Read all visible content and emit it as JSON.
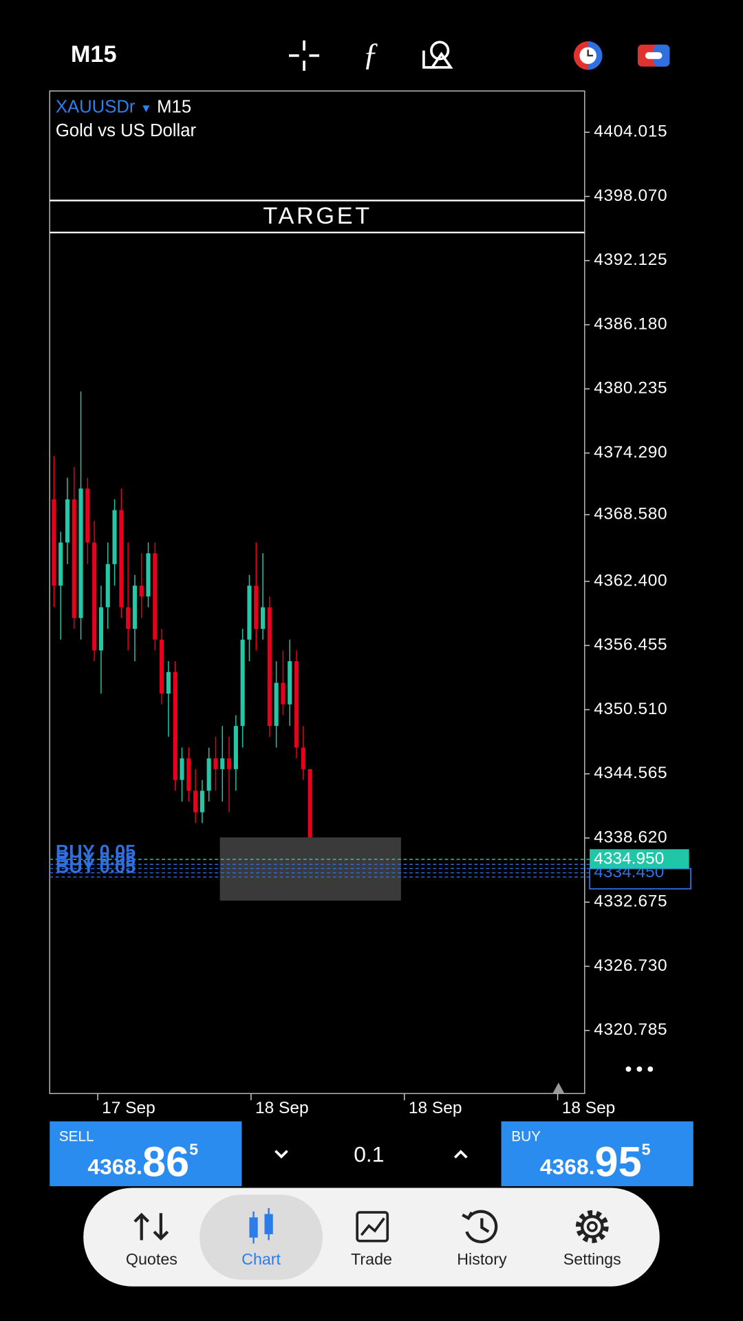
{
  "top_bar": {
    "timeframe": "M15"
  },
  "chart_header": {
    "symbol": "XAUUSDr",
    "timeframe": "M15",
    "description": "Gold vs US Dollar"
  },
  "chart_data": {
    "type": "candlestick",
    "open": [
      4370,
      4362,
      4366,
      4370,
      4359,
      4371,
      4366,
      4356,
      4360,
      4364,
      4369,
      4360,
      4358,
      4362,
      4361,
      4365,
      4357,
      4352,
      4354,
      4344,
      4346,
      4343,
      4341,
      4343,
      4346,
      4345,
      4346,
      4345,
      4349,
      4357,
      4362,
      4358,
      4360,
      4349,
      4353,
      4351,
      4355,
      4347,
      4345
    ],
    "high": [
      4374,
      4367,
      4372,
      4373,
      4380,
      4372,
      4368,
      4362,
      4366,
      4370,
      4371,
      4366,
      4363,
      4365,
      4366,
      4366,
      4358,
      4355,
      4355,
      4347,
      4347,
      4345,
      4344,
      4347,
      4348,
      4349,
      4348,
      4350,
      4358,
      4363,
      4366,
      4365,
      4361,
      4355,
      4356,
      4357,
      4356,
      4349,
      4345
    ],
    "low": [
      4360,
      4357,
      4364,
      4358,
      4357,
      4364,
      4355,
      4352,
      4358,
      4362,
      4359,
      4356,
      4355,
      4359,
      4360,
      4356,
      4351,
      4348,
      4343,
      4342,
      4342,
      4340,
      4340,
      4342,
      4343,
      4342,
      4341,
      4343,
      4347,
      4355,
      4356,
      4357,
      4348,
      4347,
      4350,
      4349,
      4346,
      4344,
      4334
    ],
    "close": [
      4362,
      4366,
      4370,
      4359,
      4371,
      4366,
      4356,
      4360,
      4364,
      4369,
      4360,
      4358,
      4362,
      4361,
      4365,
      4357,
      4352,
      4354,
      4344,
      4346,
      4343,
      4341,
      4343,
      4346,
      4345,
      4346,
      4345,
      4349,
      4357,
      4362,
      4358,
      4360,
      4349,
      4353,
      4351,
      4355,
      4347,
      4345,
      4336
    ],
    "up_color": "#26c6a6",
    "down_color": "#e8001c",
    "ylim": [
      4314.94,
      4407.84
    ],
    "yticks": [
      4404.015,
      {
        "value": 4398.07,
        "label": "4398.070"
      },
      4392.125,
      {
        "value": 4386.18,
        "label": "4386.180"
      },
      4380.235,
      {
        "value": 4374.29,
        "label": "4374.290"
      },
      {
        "value": 4368.58,
        "label": "4368.580"
      },
      {
        "value": 4362.4,
        "label": "4362.400"
      },
      4356.455,
      {
        "value": 4350.51,
        "label": "4350.510"
      },
      4344.565,
      {
        "value": 4338.62,
        "label": "4338.620"
      },
      4332.675,
      {
        "value": 4326.73,
        "label": "4326.730"
      },
      4320.785
    ],
    "x_labels": [
      "17 Sep",
      "18 Sep",
      "18 Sep",
      "18 Sep"
    ],
    "target_label": "TARGET",
    "order_labels": [
      "BUY 0.05",
      "BUY 0.05",
      "BUY 0.05"
    ],
    "price_tags": [
      "4334.950",
      "4334.450"
    ]
  },
  "trade_panel": {
    "sell": {
      "label": "SELL",
      "big": "4368.",
      "pips": "86",
      "point": "5"
    },
    "volume": "0.1",
    "buy": {
      "label": "BUY",
      "big": "4368.",
      "pips": "95",
      "point": "5"
    }
  },
  "nav": [
    "Quotes",
    "Chart",
    "Trade",
    "History",
    "Settings"
  ]
}
